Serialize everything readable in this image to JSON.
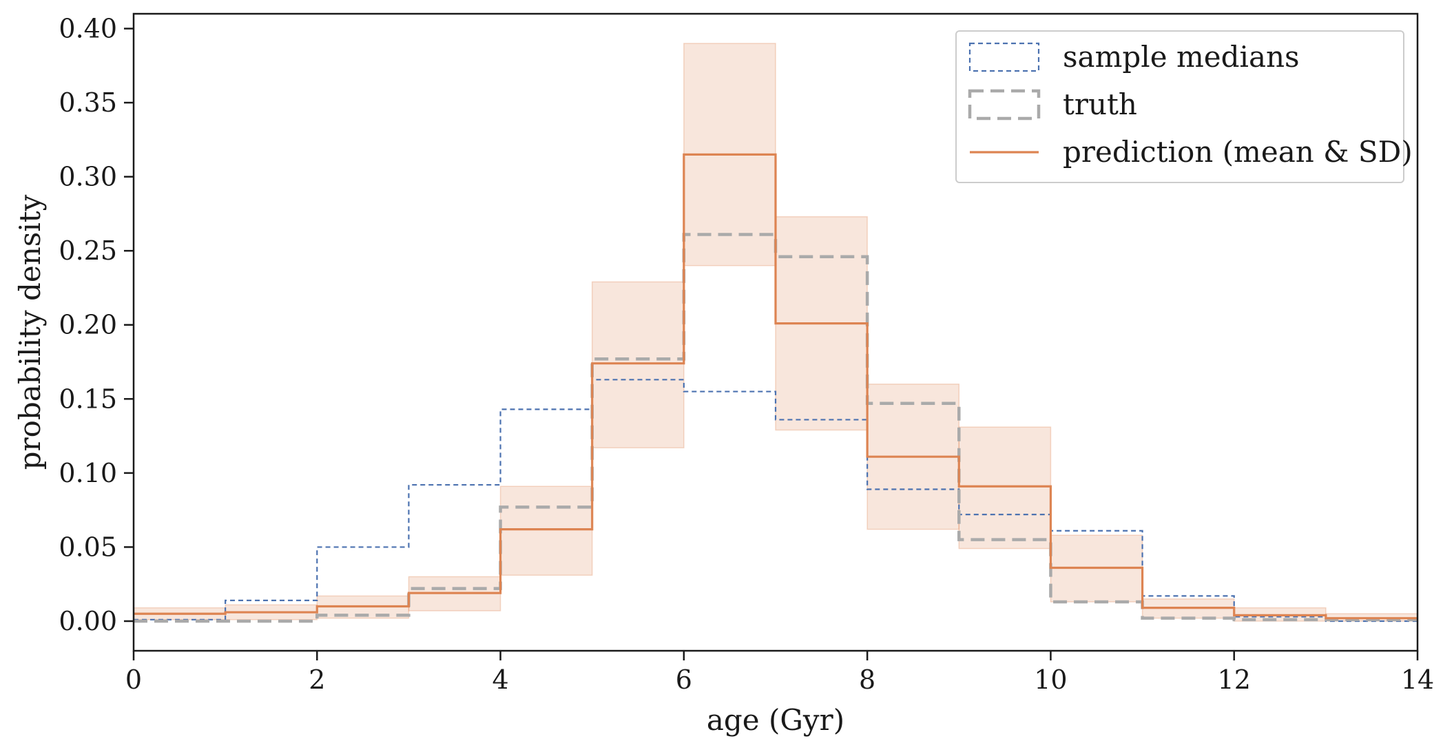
{
  "chart_data": {
    "type": "line",
    "step": "histogram",
    "xlabel": "age (Gyr)",
    "ylabel": "probability density",
    "xlim": [
      0,
      14
    ],
    "ylim": [
      -0.02,
      0.41
    ],
    "xticks": [
      0,
      2,
      4,
      6,
      8,
      10,
      12,
      14
    ],
    "yticks": [
      0.0,
      0.05,
      0.1,
      0.15,
      0.2,
      0.25,
      0.3,
      0.35,
      0.4
    ],
    "ytick_labels": [
      "0.00",
      "0.05",
      "0.10",
      "0.15",
      "0.20",
      "0.25",
      "0.30",
      "0.35",
      "0.40"
    ],
    "bin_edges": [
      0,
      1,
      2,
      3,
      4,
      5,
      6,
      7,
      8,
      9,
      10,
      11,
      12,
      13,
      14
    ],
    "legend_position": "top-right",
    "grid": false,
    "series": [
      {
        "name": "sample medians",
        "color": "#4c72b0",
        "style": "dashed-thin",
        "values": [
          0.001,
          0.014,
          0.05,
          0.092,
          0.143,
          0.163,
          0.155,
          0.136,
          0.089,
          0.072,
          0.061,
          0.017,
          0.003,
          0.0
        ]
      },
      {
        "name": "truth",
        "color": "#aaaaaa",
        "style": "dashed-thick",
        "values": [
          0.0,
          0.0,
          0.004,
          0.022,
          0.077,
          0.177,
          0.261,
          0.246,
          0.147,
          0.055,
          0.013,
          0.002,
          0.001,
          0.001
        ]
      },
      {
        "name": "prediction (mean & SD)",
        "color": "#dd8452",
        "style": "solid",
        "values": [
          0.005,
          0.006,
          0.01,
          0.019,
          0.062,
          0.174,
          0.315,
          0.201,
          0.111,
          0.091,
          0.036,
          0.009,
          0.004,
          0.002
        ],
        "lower": [
          0.001,
          0.001,
          0.002,
          0.007,
          0.031,
          0.117,
          0.24,
          0.129,
          0.062,
          0.049,
          0.013,
          0.002,
          0.0,
          0.0
        ],
        "upper": [
          0.009,
          0.011,
          0.017,
          0.03,
          0.091,
          0.229,
          0.39,
          0.273,
          0.16,
          0.131,
          0.058,
          0.015,
          0.009,
          0.005
        ]
      }
    ]
  }
}
